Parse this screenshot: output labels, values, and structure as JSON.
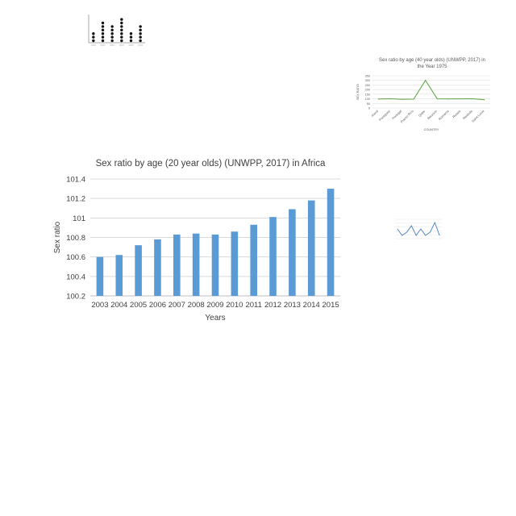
{
  "chart_data": [
    {
      "type": "scatter",
      "title": "",
      "categories": [
        "",
        "",
        "",
        "",
        "",
        ""
      ],
      "values": [
        3,
        6,
        5,
        7,
        3,
        5
      ],
      "xlabel": "",
      "ylabel": "",
      "ylim": [
        0,
        8
      ],
      "colors": {
        "dot": "#111111",
        "axis": "#555555"
      }
    },
    {
      "type": "line",
      "title": "Sex ratio by age (40 year olds) (UNWPP, 2017) in the Year 1975",
      "categories": [
        "Aland",
        "Paraguay",
        "Portugal",
        "Puerto Rico",
        "Qatar",
        "Reunion",
        "Romania",
        "Russia",
        "Rwanda",
        "Saint Lucia"
      ],
      "values": [
        98,
        101,
        95,
        97,
        300,
        100,
        99,
        100,
        101,
        90
      ],
      "xlabel": "COUNTRY",
      "ylabel": "SEX RATIO",
      "ylim": [
        0,
        350
      ],
      "yticks": [
        0,
        50,
        100,
        150,
        200,
        250,
        300,
        350
      ],
      "colors": {
        "line": "#6aa84f",
        "grid": "#d9d9d9",
        "text": "#595959"
      }
    },
    {
      "type": "bar",
      "title": "Sex ratio by age (20 year olds) (UNWPP, 2017) in Africa",
      "categories": [
        "2003",
        "2004",
        "2005",
        "2006",
        "2007",
        "2008",
        "2009",
        "2010",
        "2011",
        "2012",
        "2013",
        "2014",
        "2015"
      ],
      "values": [
        100.6,
        100.62,
        100.72,
        100.78,
        100.83,
        100.84,
        100.83,
        100.86,
        100.93,
        101.01,
        101.09,
        101.18,
        101.3
      ],
      "xlabel": "Years",
      "ylabel": "Sex ratio",
      "ylim": [
        100.2,
        101.4
      ],
      "yticks": [
        "100.2",
        "100.4",
        "100.6",
        "100.8",
        "101",
        "101.2",
        "101.4"
      ],
      "grid": true,
      "colors": {
        "bar": "#5b9bd5",
        "grid": "#d9d9d9",
        "text": "#404040"
      }
    },
    {
      "type": "line",
      "title": "",
      "categories": [
        "",
        "",
        "",
        "",
        "",
        "",
        "",
        "",
        "",
        ""
      ],
      "values": [
        3,
        1,
        2,
        4,
        1,
        3,
        1,
        2,
        5,
        1
      ],
      "xlabel": "",
      "ylabel": "",
      "ylim": [
        0,
        6
      ],
      "colors": {
        "line": "#4a7ebb",
        "grid": "#e0e0e0"
      }
    }
  ]
}
